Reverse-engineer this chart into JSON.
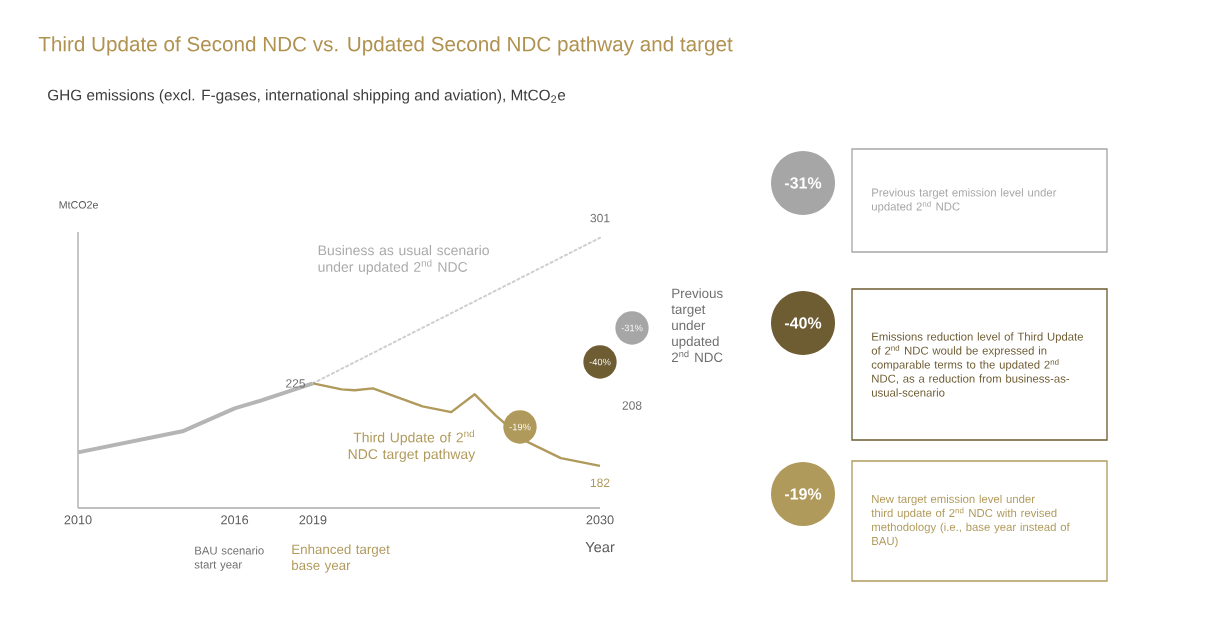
{
  "chart_data": [
    {
      "type": "line",
      "title": "Third Update of Second NDC vs. Updated Second NDC pathway and target",
      "subtitle": "GHG emissions (excl. F-gases, international shipping and aviation), MtCO$_{2}$e",
      "xlabel": "Year",
      "ylabel": "MtCO2e",
      "xlim": [
        2010,
        2030
      ],
      "ylim": [
        160,
        304
      ],
      "xticks": [
        2010,
        2016,
        2019,
        2030
      ],
      "tick_labels": "x",
      "marker": "none",
      "series": [
        {
          "color": "#b5b5b5",
          "x": [
            2010,
            2014,
            2016,
            2017,
            2019
          ],
          "values": [
            189,
            200,
            212,
            216,
            225
          ]
        },
        {
          "name": "Business as usual scenario under updated 2$^{nd}$ NDC",
          "color": "#cfcfcf",
          "line_style": "dotted",
          "x": [
            2019,
            2030
          ],
          "values": [
            225,
            301
          ],
          "value_labels": [
            null,
            "301"
          ]
        },
        {
          "name": "Third Update of 2$^{nd}$ NDC target pathway",
          "color": "#b09a5b",
          "x": [
            2019,
            2020.1,
            2020.6,
            2021.3,
            2023.2,
            2024.3,
            2025.2,
            2026,
            2027.1,
            2028.5,
            2030
          ],
          "values": [
            225,
            221.9,
            221.4,
            222.4,
            213,
            210,
            219.3,
            208.3,
            195.3,
            186,
            182
          ],
          "value_labels": [
            "225",
            null,
            null,
            null,
            null,
            null,
            null,
            null,
            null,
            null,
            "182"
          ]
        }
      ],
      "annotations": [
        "-40%",
        "-19%",
        "208",
        "-31%",
        "Previous target under updated 2$^{nd}$ NDC",
        "BAU scenario start year",
        "Enhanced target base year"
      ]
    },
    {
      "type": "other",
      "colors": [
        "#a6a6a6",
        "#6e5c33",
        "#b09a5b"
      ],
      "annotations": [
        "-31%",
        "Previous target emission level under updated 2$^{nd}$ NDC",
        "-40%",
        "Emissions reduction level of Third Update of 2$^{nd}$ NDC would be expressed in comparable terms to the updated 2$^{nd}$ NDC, as a reduction from business-as-usual-scenario",
        "-19%",
        "New target emission level under third update of 2$^{nd}$ NDC with revised methodology (i.e., base year instead of BAU)"
      ]
    }
  ]
}
